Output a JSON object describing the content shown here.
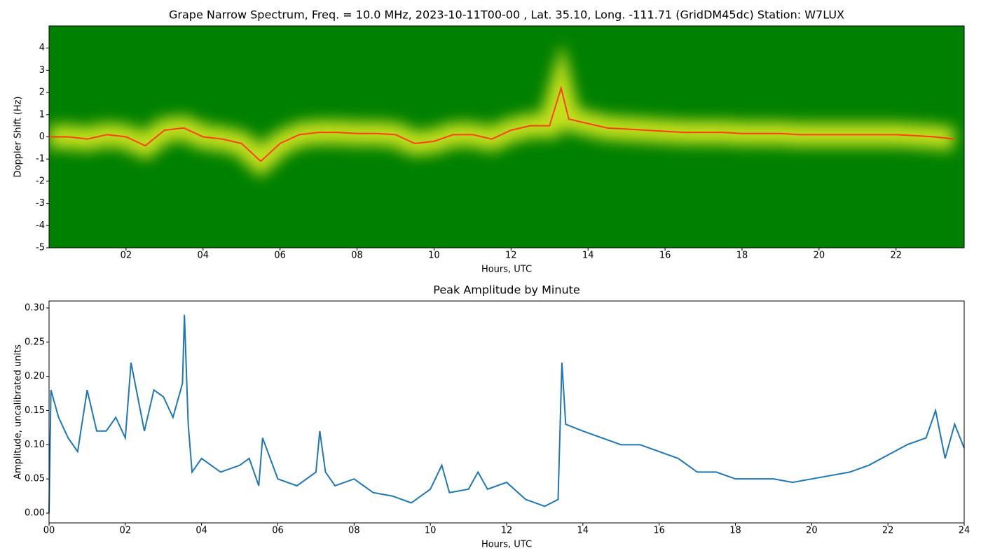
{
  "chart_data": [
    {
      "type": "spectrogram",
      "title": "Grape Narrow Spectrum, Freq. = 10.0 MHz, 2023-10-11T00-00 , Lat.  35.10, Long. -111.71 (GridDM45dc) Station: W7LUX",
      "x_label": "Hours, UTC",
      "y_label": "Doppler Shift (Hz)",
      "background": "#008000",
      "band_color": "#e8f020",
      "color": "#ff4000",
      "x": [
        0,
        0.5,
        1,
        1.5,
        2,
        2.5,
        3,
        3.5,
        4,
        4.5,
        5,
        5.5,
        6,
        6.5,
        7,
        7.5,
        8,
        8.5,
        9,
        9.5,
        10,
        10.5,
        11,
        11.5,
        12,
        12.5,
        13,
        13.3,
        13.5,
        14,
        14.5,
        15,
        15.5,
        16,
        16.5,
        17,
        17.5,
        18,
        18.5,
        19,
        19.5,
        20,
        20.5,
        21,
        21.5,
        22,
        22.5,
        23,
        23.5
      ],
      "values": [
        0,
        0,
        -0.1,
        0.1,
        0,
        -0.4,
        0.3,
        0.4,
        0,
        -0.1,
        -0.3,
        -1.1,
        -0.3,
        0.1,
        0.2,
        0.2,
        0.15,
        0.15,
        0.1,
        -0.3,
        -0.2,
        0.1,
        0.1,
        -0.1,
        0.3,
        0.5,
        0.5,
        2.2,
        0.8,
        0.6,
        0.4,
        0.35,
        0.3,
        0.25,
        0.2,
        0.2,
        0.2,
        0.15,
        0.15,
        0.15,
        0.1,
        0.1,
        0.1,
        0.1,
        0.1,
        0.1,
        0.05,
        0,
        -0.1
      ],
      "xlim": [
        0,
        23.77
      ],
      "ylim": [
        -5,
        5
      ],
      "xticks": [
        {
          "value": 2,
          "label": "02"
        },
        {
          "value": 4,
          "label": "04"
        },
        {
          "value": 6,
          "label": "06"
        },
        {
          "value": 8,
          "label": "08"
        },
        {
          "value": 10,
          "label": "10"
        },
        {
          "value": 12,
          "label": "12"
        },
        {
          "value": 14,
          "label": "14"
        },
        {
          "value": 16,
          "label": "16"
        },
        {
          "value": 18,
          "label": "18"
        },
        {
          "value": 20,
          "label": "20"
        },
        {
          "value": 22,
          "label": "22"
        }
      ],
      "yticks": [
        -5,
        -4,
        -3,
        -2,
        -1,
        0,
        1,
        2,
        3,
        4
      ]
    },
    {
      "type": "line",
      "title": "Peak Amplitude by Minute",
      "x_label": "Hours, UTC",
      "y_label": "Amplitude, uncalibrated units",
      "color": "#1f77b4",
      "x": [
        0,
        0.05,
        0.25,
        0.5,
        0.75,
        1,
        1.25,
        1.5,
        1.75,
        2,
        2.15,
        2.5,
        2.75,
        3,
        3.25,
        3.5,
        3.55,
        3.65,
        3.75,
        4,
        4.25,
        4.5,
        5,
        5.25,
        5.5,
        5.6,
        6,
        6.5,
        7,
        7.1,
        7.25,
        7.5,
        8,
        8.5,
        9,
        9.5,
        10,
        10.3,
        10.5,
        11,
        11.25,
        11.5,
        12,
        12.5,
        13,
        13.35,
        13.45,
        13.55,
        14,
        14.5,
        15,
        15.5,
        16,
        16.5,
        17,
        17.5,
        18,
        18.5,
        19,
        19.5,
        20,
        20.5,
        21,
        21.5,
        22,
        22.5,
        23,
        23.25,
        23.5,
        23.75,
        24
      ],
      "values": [
        0,
        0.18,
        0.14,
        0.11,
        0.09,
        0.18,
        0.12,
        0.12,
        0.14,
        0.11,
        0.22,
        0.12,
        0.18,
        0.17,
        0.14,
        0.19,
        0.29,
        0.13,
        0.06,
        0.08,
        0.07,
        0.06,
        0.07,
        0.08,
        0.04,
        0.11,
        0.05,
        0.04,
        0.06,
        0.12,
        0.06,
        0.04,
        0.05,
        0.03,
        0.025,
        0.015,
        0.035,
        0.07,
        0.03,
        0.035,
        0.06,
        0.035,
        0.045,
        0.02,
        0.01,
        0.02,
        0.22,
        0.13,
        0.12,
        0.11,
        0.1,
        0.1,
        0.09,
        0.08,
        0.06,
        0.06,
        0.05,
        0.05,
        0.05,
        0.045,
        0.05,
        0.055,
        0.06,
        0.07,
        0.085,
        0.1,
        0.11,
        0.15,
        0.08,
        0.13,
        0.095
      ],
      "xlim": [
        0,
        24
      ],
      "ylim": [
        -0.0143,
        0.3102
      ],
      "xticks": [
        {
          "value": 0,
          "label": "00"
        },
        {
          "value": 2,
          "label": "02"
        },
        {
          "value": 4,
          "label": "04"
        },
        {
          "value": 6,
          "label": "06"
        },
        {
          "value": 8,
          "label": "08"
        },
        {
          "value": 10,
          "label": "10"
        },
        {
          "value": 12,
          "label": "12"
        },
        {
          "value": 14,
          "label": "14"
        },
        {
          "value": 16,
          "label": "16"
        },
        {
          "value": 18,
          "label": "18"
        },
        {
          "value": 20,
          "label": "20"
        },
        {
          "value": 22,
          "label": "22"
        },
        {
          "value": 24,
          "label": "24"
        }
      ],
      "yticks": [
        {
          "value": 0,
          "label": "0.00"
        },
        {
          "value": 0.05,
          "label": "0.05"
        },
        {
          "value": 0.1,
          "label": "0.10"
        },
        {
          "value": 0.15,
          "label": "0.15"
        },
        {
          "value": 0.2,
          "label": "0.20"
        },
        {
          "value": 0.25,
          "label": "0.25"
        },
        {
          "value": 0.3,
          "label": "0.30"
        }
      ]
    }
  ]
}
